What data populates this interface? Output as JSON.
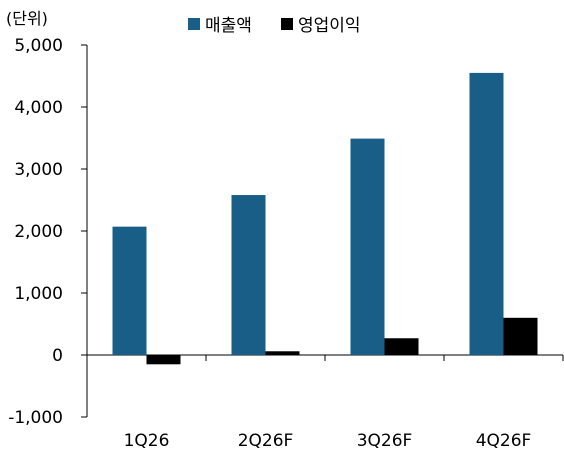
{
  "chart_data": {
    "type": "bar",
    "unit_label": "(단위)",
    "categories": [
      "1Q26",
      "2Q26F",
      "3Q26F",
      "4Q26F"
    ],
    "series": [
      {
        "name": "매출액",
        "color": "#195E86",
        "values": [
          2070,
          2580,
          3490,
          4550
        ]
      },
      {
        "name": "영업이익",
        "color": "#000000",
        "values": [
          -150,
          60,
          270,
          600
        ]
      }
    ],
    "ylim": [
      -1000,
      5000
    ],
    "yticks": [
      5000,
      4000,
      3000,
      2000,
      1000,
      0,
      -1000
    ],
    "ytick_labels": [
      "5,000",
      "4,000",
      "3,000",
      "2,000",
      "1,000",
      "0",
      "-1,000"
    ],
    "legend_position": "top-center",
    "grid": false
  }
}
